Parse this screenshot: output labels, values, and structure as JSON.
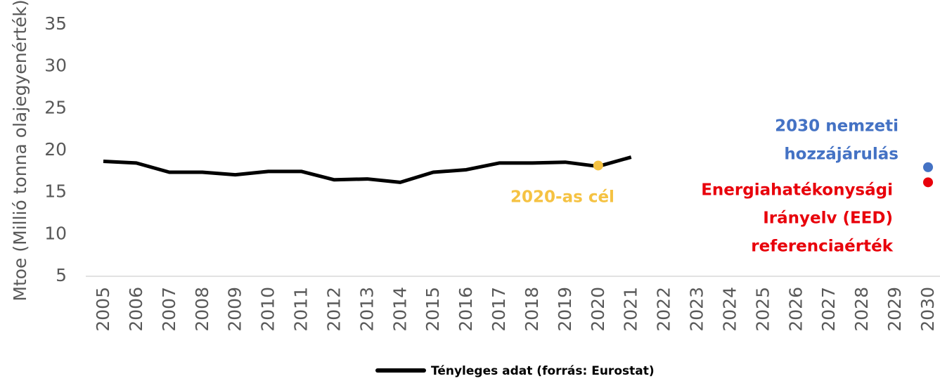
{
  "chart_data": {
    "type": "line",
    "y_label": "Mtoe (Millió tonna olajegyenérték)",
    "categories": [
      "2005",
      "2006",
      "2007",
      "2008",
      "2009",
      "2010",
      "2011",
      "2012",
      "2013",
      "2014",
      "2015",
      "2016",
      "2017",
      "2018",
      "2019",
      "2020",
      "2021",
      "2022",
      "2023",
      "2024",
      "2025",
      "2026",
      "2027",
      "2028",
      "2029",
      "2030"
    ],
    "series": [
      {
        "name": "Tényleges adat (forrás: Eurostat)",
        "color": "#000000",
        "values": [
          18.7,
          18.5,
          17.4,
          17.4,
          17.1,
          17.5,
          17.5,
          16.5,
          16.6,
          16.2,
          17.4,
          17.7,
          18.5,
          18.5,
          18.6,
          18.1,
          19.2,
          null,
          null,
          null,
          null,
          null,
          null,
          null,
          null,
          null
        ]
      }
    ],
    "points": [
      {
        "x": "2020",
        "value": 18.2,
        "color": "#f5c242",
        "label": [
          "2020-as cél"
        ]
      },
      {
        "x": "2030",
        "value": 18.0,
        "color": "#4472c4",
        "label": [
          "2030 nemzeti",
          "hozzájárulás"
        ]
      },
      {
        "x": "2030",
        "value": 16.2,
        "color": "#e8000b",
        "label": [
          "Energiahatékonysági",
          "Irányelv (EED)",
          "referenciaérték"
        ]
      }
    ],
    "ylim": [
      5,
      35
    ],
    "yticks": [
      5,
      10,
      15,
      20,
      25,
      30,
      35
    ],
    "grid": false,
    "legend": "bottom"
  }
}
